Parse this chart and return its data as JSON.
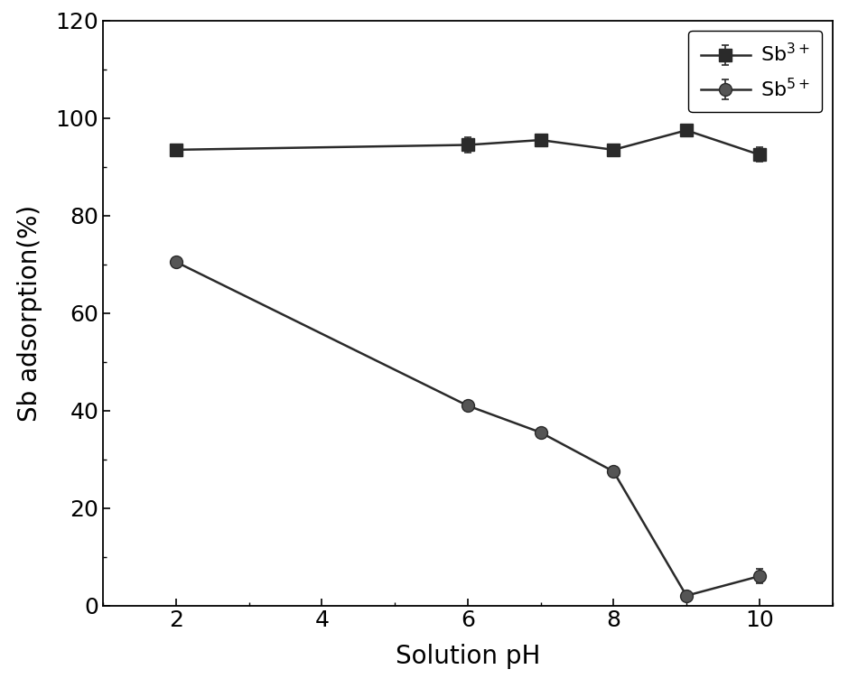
{
  "sb3_x": [
    2,
    6,
    7,
    8,
    9,
    10
  ],
  "sb3_y": [
    93.5,
    94.5,
    95.5,
    93.5,
    97.5,
    92.5
  ],
  "sb3_yerr": [
    1.0,
    1.5,
    0.8,
    0.8,
    0.8,
    1.5
  ],
  "sb5_x": [
    2,
    6,
    7,
    8,
    9,
    10
  ],
  "sb5_y": [
    70.5,
    41.0,
    35.5,
    27.5,
    2.0,
    6.0
  ],
  "sb5_yerr": [
    1.0,
    1.0,
    1.0,
    1.0,
    0.8,
    1.5
  ],
  "color": "#2a2a2a",
  "marker_color_sb5": "#555555",
  "xlabel": "Solution pH",
  "ylabel": "Sb adsorption(%)",
  "xlim": [
    1,
    11
  ],
  "ylim": [
    0,
    120
  ],
  "xticks": [
    2,
    4,
    6,
    8,
    10
  ],
  "yticks": [
    0,
    20,
    40,
    60,
    80,
    100,
    120
  ],
  "legend_sb3": "Sb$^{3+}$",
  "legend_sb5": "Sb$^{5+}$",
  "fontsize_label": 20,
  "fontsize_tick": 18,
  "fontsize_legend": 16,
  "linewidth": 1.8,
  "markersize": 10,
  "background_color": "#ffffff",
  "figwidth": 9.5,
  "figheight": 7.62
}
